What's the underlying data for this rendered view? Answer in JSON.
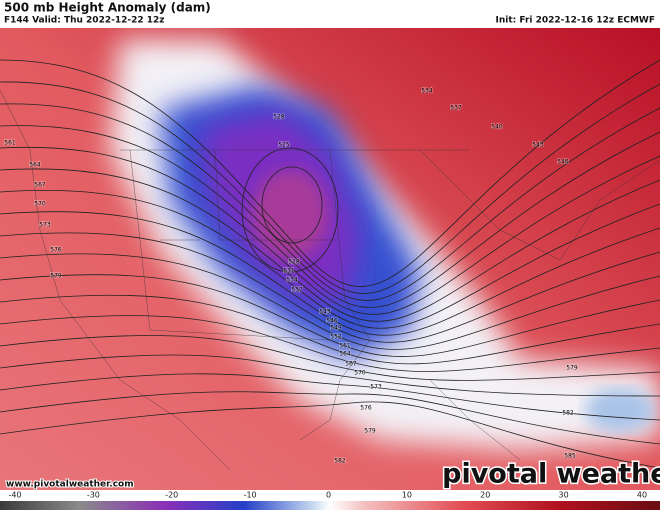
{
  "header": {
    "title": "500 mb Height Anomaly (dam)",
    "valid": "F144 Valid: Thu 2022-12-22 12z",
    "init": "Init: Fri 2022-12-16 12z ECMWF"
  },
  "contour_labels": [
    534,
    537,
    540,
    543,
    546,
    528,
    525,
    561,
    564,
    567,
    570,
    573,
    576,
    579,
    528,
    531,
    534,
    537,
    543,
    546,
    549,
    552,
    561,
    564,
    567,
    570,
    573,
    576,
    579,
    579,
    582,
    582,
    585
  ],
  "colorbar": {
    "ticks": [
      -40,
      -30,
      -20,
      -10,
      0,
      10,
      20,
      30,
      40
    ]
  },
  "footer": {
    "url": "www.pivotalweather.com",
    "logo": "pivotal weather"
  }
}
